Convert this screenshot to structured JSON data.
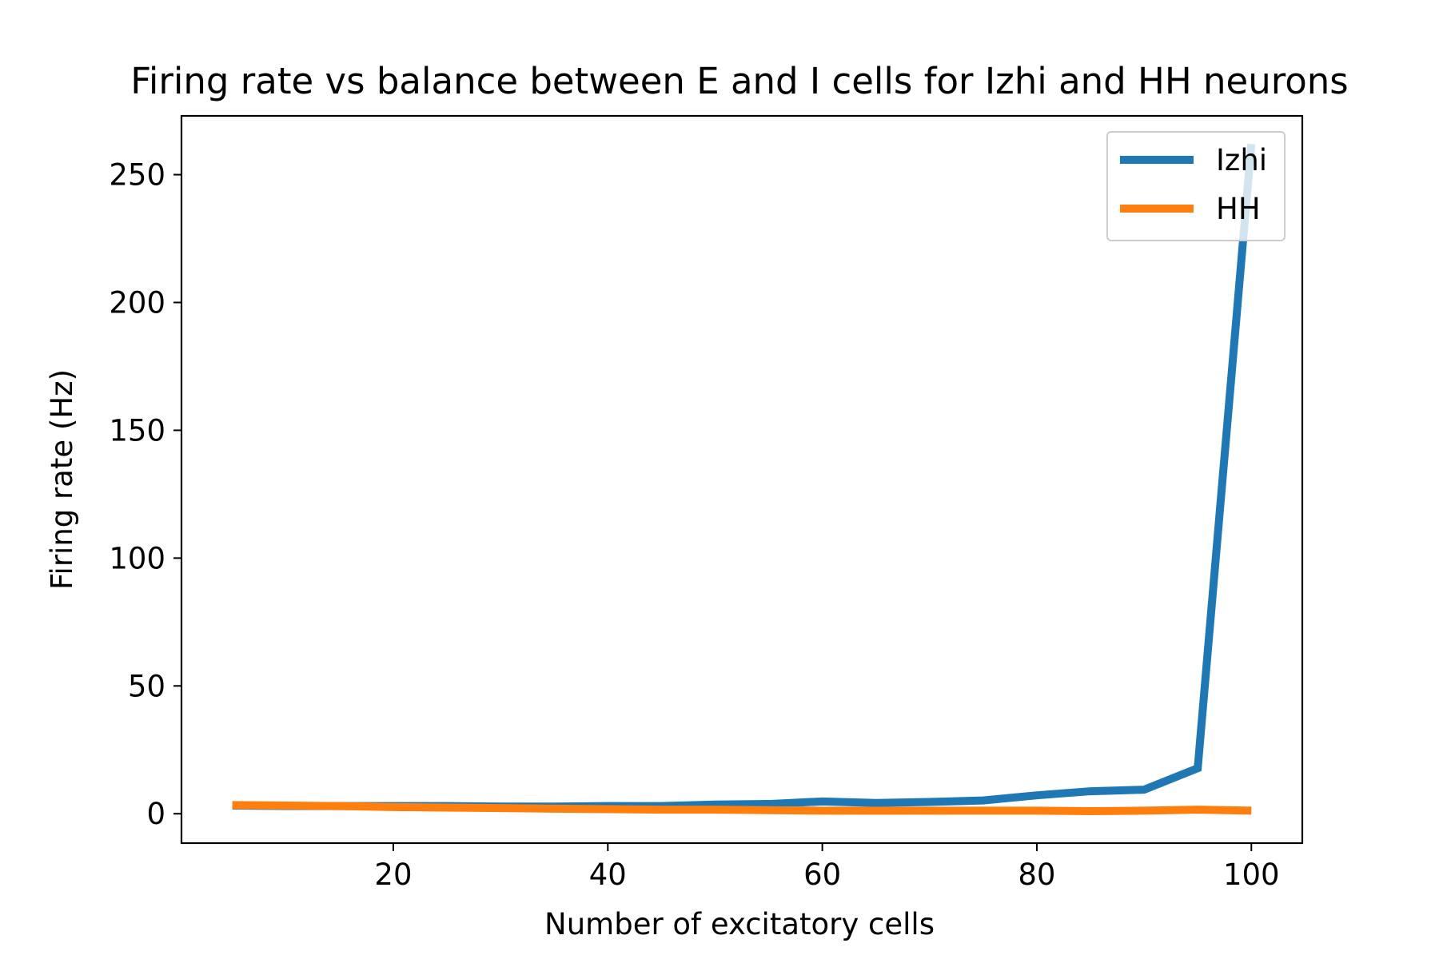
{
  "chart_data": {
    "type": "line",
    "title": "Firing rate vs balance between E and I cells for Izhi and HH neurons",
    "xlabel": "Number of excitatory cells",
    "ylabel": "Firing rate (Hz)",
    "xlim": [
      0.25,
      104.75
    ],
    "ylim": [
      -11.5,
      273
    ],
    "xticks": [
      20,
      40,
      60,
      80,
      100
    ],
    "yticks": [
      0,
      50,
      100,
      150,
      200,
      250
    ],
    "grid": false,
    "legend_position": "upper right",
    "x": [
      5,
      10,
      15,
      20,
      25,
      30,
      35,
      40,
      45,
      50,
      55,
      60,
      65,
      70,
      75,
      80,
      85,
      90,
      95,
      100
    ],
    "series": [
      {
        "name": "Izhi",
        "color": "#1f77b4",
        "values": [
          3.2,
          3.0,
          3.0,
          3.0,
          3.0,
          2.8,
          2.8,
          3.0,
          3.0,
          3.6,
          3.8,
          4.8,
          4.2,
          4.6,
          5.2,
          7.2,
          8.8,
          9.4,
          17.8,
          262
        ]
      },
      {
        "name": "HH",
        "color": "#ff7f0e",
        "values": [
          3.4,
          3.2,
          3.0,
          2.6,
          2.4,
          2.2,
          2.0,
          1.8,
          1.6,
          1.6,
          1.4,
          1.2,
          1.2,
          1.2,
          1.2,
          1.2,
          1.0,
          1.2,
          1.6,
          1.2
        ]
      }
    ]
  }
}
